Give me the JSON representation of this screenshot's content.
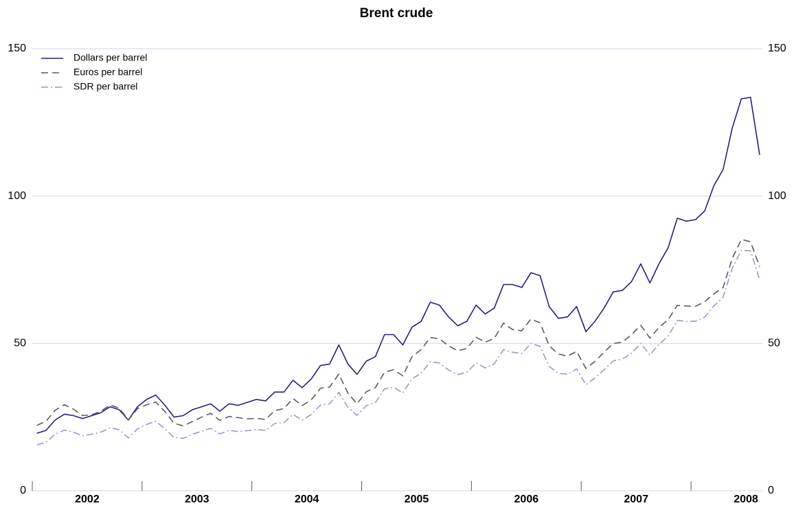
{
  "chart_data": {
    "type": "line",
    "title": "Brent crude",
    "x": [
      2002.042,
      2002.125,
      2002.208,
      2002.292,
      2002.375,
      2002.458,
      2002.542,
      2002.625,
      2002.708,
      2002.792,
      2002.875,
      2002.958,
      2003.042,
      2003.125,
      2003.208,
      2003.292,
      2003.375,
      2003.458,
      2003.542,
      2003.625,
      2003.708,
      2003.792,
      2003.875,
      2003.958,
      2004.042,
      2004.125,
      2004.208,
      2004.292,
      2004.375,
      2004.458,
      2004.542,
      2004.625,
      2004.708,
      2004.792,
      2004.875,
      2004.958,
      2005.042,
      2005.125,
      2005.208,
      2005.292,
      2005.375,
      2005.458,
      2005.542,
      2005.625,
      2005.708,
      2005.792,
      2005.875,
      2005.958,
      2006.042,
      2006.125,
      2006.208,
      2006.292,
      2006.375,
      2006.458,
      2006.542,
      2006.625,
      2006.708,
      2006.792,
      2006.875,
      2006.958,
      2007.042,
      2007.125,
      2007.208,
      2007.292,
      2007.375,
      2007.458,
      2007.542,
      2007.625,
      2007.708,
      2007.792,
      2007.875,
      2007.958,
      2008.042,
      2008.125,
      2008.208,
      2008.292,
      2008.375,
      2008.458,
      2008.542,
      2008.625
    ],
    "series": [
      {
        "name": "Dollars per barrel",
        "color": "#2b1b7e",
        "dash": "none",
        "values": [
          19.5,
          20.5,
          24,
          26,
          25.5,
          24.5,
          25.5,
          26.5,
          28.5,
          27.5,
          24,
          28.5,
          31,
          32.5,
          29,
          25,
          25.5,
          27.5,
          28.5,
          29.5,
          27,
          29.5,
          29,
          30,
          31,
          30.5,
          33.5,
          33.5,
          37.5,
          35,
          38,
          42.5,
          43,
          49.5,
          43,
          39.5,
          44,
          45.5,
          53,
          53,
          49.5,
          55.5,
          57.5,
          64,
          63,
          59,
          56,
          57.5,
          63,
          60,
          62,
          70,
          70,
          69,
          74,
          73,
          62.5,
          58.5,
          59,
          62.5,
          54,
          57.5,
          62,
          67.5,
          68,
          71,
          77,
          70.5,
          77,
          82.5,
          92.5,
          91.5,
          92,
          95,
          103.5,
          109,
          123,
          133,
          133.5,
          114
        ]
      },
      {
        "name": "Euros per barrel",
        "color": "#5a5a5a",
        "dash": "10,6",
        "values": [
          22.2,
          23.6,
          27.3,
          29.2,
          27.7,
          25.5,
          25.8,
          27.0,
          29.1,
          28.1,
          24.0,
          27.9,
          29.2,
          30.1,
          26.9,
          22.9,
          22.0,
          23.5,
          25.0,
          26.3,
          23.9,
          25.2,
          24.8,
          24.4,
          24.6,
          24.2,
          27.2,
          27.9,
          31.3,
          28.9,
          30.9,
          34.8,
          35.2,
          39.6,
          33.1,
          29.5,
          33.6,
          35.0,
          40.2,
          41.1,
          39.0,
          45.5,
          47.9,
          52.0,
          51.6,
          49.2,
          47.5,
          48.3,
          52.1,
          50.4,
          51.7,
          56.9,
          54.7,
          54.3,
          58.3,
          57.0,
          49.2,
          46.4,
          45.7,
          47.3,
          41.5,
          43.9,
          47.0,
          50.0,
          50.4,
          53.0,
          56.2,
          51.8,
          55.4,
          58.1,
          62.9,
          62.7,
          62.6,
          64.2,
          66.8,
          69.0,
          78.8,
          85.3,
          84.5,
          76.0
        ]
      },
      {
        "name": "SDR per barrel",
        "color": "#9d93cc",
        "dash": "10,4,2,4",
        "values": [
          15.6,
          16.4,
          19.2,
          20.6,
          19.9,
          18.7,
          19.2,
          19.9,
          21.4,
          20.7,
          17.9,
          21.0,
          22.5,
          23.6,
          21.0,
          18.1,
          17.8,
          19.2,
          20.2,
          21.2,
          19.3,
          20.5,
          20.1,
          20.4,
          20.8,
          20.5,
          22.8,
          23.1,
          25.9,
          24.0,
          25.9,
          29.1,
          29.5,
          33.4,
          28.3,
          25.6,
          28.9,
          29.9,
          34.6,
          35.1,
          33.2,
          38.0,
          39.9,
          43.8,
          43.4,
          41.0,
          39.4,
          40.2,
          43.4,
          41.7,
          43.1,
          47.9,
          47.0,
          46.6,
          50.0,
          49.0,
          42.2,
          39.8,
          39.6,
          41.4,
          36.0,
          38.3,
          41.1,
          44.1,
          44.7,
          46.7,
          50.0,
          46.1,
          49.7,
          52.5,
          57.8,
          57.5,
          57.5,
          59.0,
          62.7,
          65.7,
          75.5,
          81.6,
          81.4,
          71.7
        ]
      }
    ],
    "xlim": [
      2002,
      2008.65
    ],
    "xticks": [
      2002,
      2003,
      2004,
      2005,
      2006,
      2007,
      2008
    ],
    "ylim": [
      0,
      150
    ],
    "yticks": [
      0,
      50,
      100,
      150
    ],
    "grid": true,
    "legend": "top-left"
  }
}
